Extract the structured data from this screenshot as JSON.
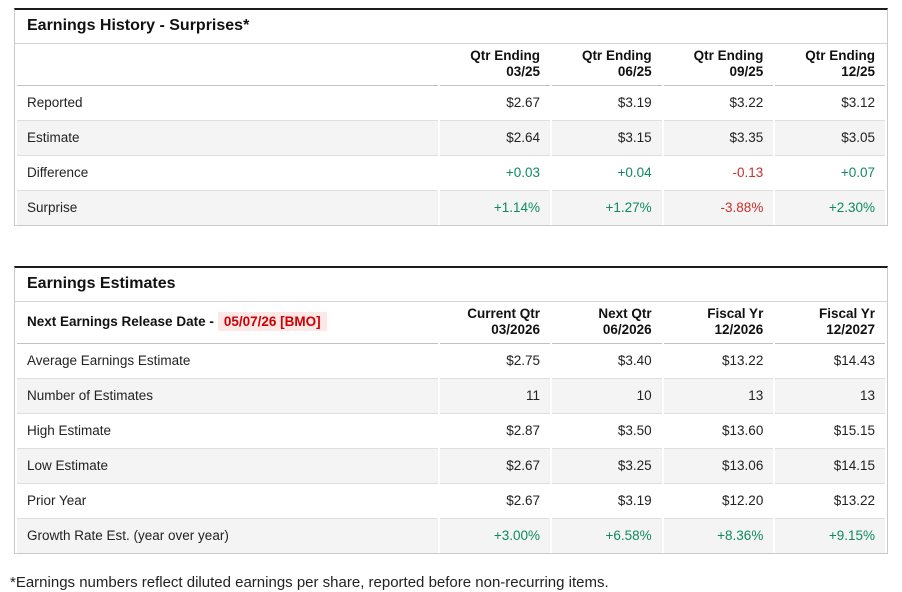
{
  "earnings_history": {
    "title": "Earnings History - Surprises*",
    "columns": [
      {
        "line1": "Qtr Ending",
        "line2": "03/25"
      },
      {
        "line1": "Qtr Ending",
        "line2": "06/25"
      },
      {
        "line1": "Qtr Ending",
        "line2": "09/25"
      },
      {
        "line1": "Qtr Ending",
        "line2": "12/25"
      }
    ],
    "rows": [
      {
        "label": "Reported",
        "values": [
          "$2.67",
          "$3.19",
          "$3.22",
          "$3.12"
        ]
      },
      {
        "label": "Estimate",
        "values": [
          "$2.64",
          "$3.15",
          "$3.35",
          "$3.05"
        ]
      },
      {
        "label": "Difference",
        "values": [
          "+0.03",
          "+0.04",
          "-0.13",
          "+0.07"
        ]
      },
      {
        "label": "Surprise",
        "values": [
          "+1.14%",
          "+1.27%",
          "-3.88%",
          "+2.30%"
        ]
      }
    ]
  },
  "earnings_estimates": {
    "title": "Earnings Estimates",
    "release_date_label": "Next Earnings Release Date -",
    "release_date_value": "05/07/26 [BMO]",
    "columns": [
      {
        "line1": "Current Qtr",
        "line2": "03/2026"
      },
      {
        "line1": "Next Qtr",
        "line2": "06/2026"
      },
      {
        "line1": "Fiscal Yr",
        "line2": "12/2026"
      },
      {
        "line1": "Fiscal Yr",
        "line2": "12/2027"
      }
    ],
    "rows": [
      {
        "label": "Average Earnings Estimate",
        "values": [
          "$2.75",
          "$3.40",
          "$13.22",
          "$14.43"
        ]
      },
      {
        "label": "Number of Estimates",
        "values": [
          "11",
          "10",
          "13",
          "13"
        ]
      },
      {
        "label": "High Estimate",
        "values": [
          "$2.87",
          "$3.50",
          "$13.60",
          "$15.15"
        ]
      },
      {
        "label": "Low Estimate",
        "values": [
          "$2.67",
          "$3.25",
          "$13.06",
          "$14.15"
        ]
      },
      {
        "label": "Prior Year",
        "values": [
          "$2.67",
          "$3.19",
          "$12.20",
          "$13.22"
        ]
      },
      {
        "label": "Growth Rate Est. (year over year)",
        "values": [
          "+3.00%",
          "+6.58%",
          "+8.36%",
          "+9.15%"
        ]
      }
    ]
  },
  "footnote": "*Earnings numbers reflect diluted earnings per share, reported before non-recurring items.",
  "colors": {
    "positive_value": "#0f8a5f",
    "negative_value": "#c9302c",
    "release_date_text": "#cc0000",
    "release_date_bg": "#fde8e8",
    "table_top_border": "#1c1c1c",
    "alt_row_bg": "#f4f4f4"
  }
}
